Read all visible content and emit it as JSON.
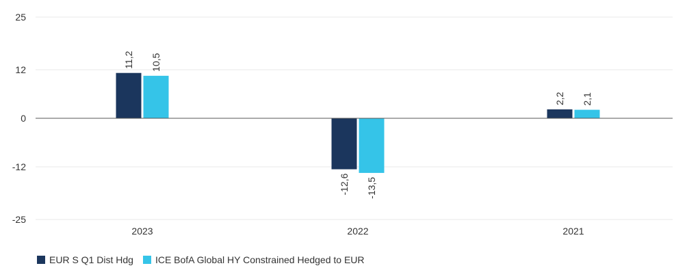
{
  "chart_data": {
    "type": "bar",
    "categories": [
      "2023",
      "2022",
      "2021"
    ],
    "series": [
      {
        "name": "EUR S Q1 Dist Hdg",
        "values": [
          11.2,
          -12.6,
          2.2
        ],
        "labels": [
          "11,2",
          "-12,6",
          "2,2"
        ],
        "color": "#1b365d"
      },
      {
        "name": "ICE BofA Global HY Constrained Hedged to EUR",
        "values": [
          10.5,
          -13.5,
          2.1
        ],
        "labels": [
          "10,5",
          "-13,5",
          "2,1"
        ],
        "color": "#35c4e8"
      }
    ],
    "yticks": [
      25,
      12,
      0,
      -12,
      -25
    ],
    "ylim": [
      -25,
      25
    ],
    "grid": true,
    "legend_position": "bottom-left"
  }
}
